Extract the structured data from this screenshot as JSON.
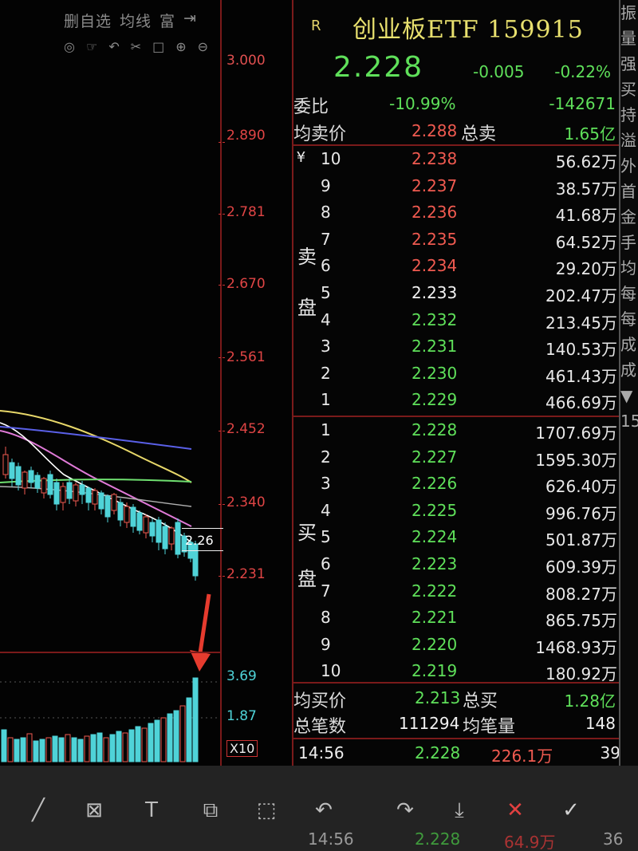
{
  "toolbar_top": {
    "row1": [
      "删自选",
      "均线",
      "富",
      "⇥"
    ],
    "row2_icons": [
      "hide-icon",
      "pointer-icon",
      "undo-icon",
      "scissors-icon",
      "rect-icon",
      "zoom-in-icon",
      "zoom-out-icon"
    ]
  },
  "price_axis": [
    "3.000",
    "2.890",
    "2.781",
    "2.670",
    "2.561",
    "2.452",
    "2.340",
    "2.231"
  ],
  "volume_axis": [
    "3.69",
    "1.87"
  ],
  "volume_unit": "X10",
  "last_price_tag": "2.26",
  "header": {
    "market": "R",
    "name": "创业板ETF 159915",
    "price": "2.228",
    "change": "-0.005",
    "change_pct": "-0.22%"
  },
  "weibi": {
    "label": "委比",
    "value": "-10.99%",
    "diff": "-142671"
  },
  "avg_sell": {
    "label": "均卖价",
    "value": "2.288",
    "total_label": "总卖",
    "total": "1.65亿"
  },
  "sell_side": {
    "label1": "卖",
    "label2": "盘",
    "currency": "¥",
    "levels": [
      {
        "n": "10",
        "price": "2.238",
        "vol": "56.62万",
        "color": "red"
      },
      {
        "n": "9",
        "price": "2.237",
        "vol": "38.57万",
        "color": "red"
      },
      {
        "n": "8",
        "price": "2.236",
        "vol": "41.68万",
        "color": "red"
      },
      {
        "n": "7",
        "price": "2.235",
        "vol": "64.52万",
        "color": "red"
      },
      {
        "n": "6",
        "price": "2.234",
        "vol": "29.20万",
        "color": "red"
      },
      {
        "n": "5",
        "price": "2.233",
        "vol": "202.47万",
        "color": "white"
      },
      {
        "n": "4",
        "price": "2.232",
        "vol": "213.45万",
        "color": "green"
      },
      {
        "n": "3",
        "price": "2.231",
        "vol": "140.53万",
        "color": "green"
      },
      {
        "n": "2",
        "price": "2.230",
        "vol": "461.43万",
        "color": "green"
      },
      {
        "n": "1",
        "price": "2.229",
        "vol": "466.69万",
        "color": "green"
      }
    ]
  },
  "buy_side": {
    "label1": "买",
    "label2": "盘",
    "levels": [
      {
        "n": "1",
        "price": "2.228",
        "vol": "1707.69万",
        "color": "green"
      },
      {
        "n": "2",
        "price": "2.227",
        "vol": "1595.30万",
        "color": "green"
      },
      {
        "n": "3",
        "price": "2.226",
        "vol": "626.40万",
        "color": "green"
      },
      {
        "n": "4",
        "price": "2.225",
        "vol": "996.76万",
        "color": "green"
      },
      {
        "n": "5",
        "price": "2.224",
        "vol": "501.87万",
        "color": "green"
      },
      {
        "n": "6",
        "price": "2.223",
        "vol": "609.39万",
        "color": "green"
      },
      {
        "n": "7",
        "price": "2.222",
        "vol": "808.27万",
        "color": "green"
      },
      {
        "n": "8",
        "price": "2.221",
        "vol": "865.75万",
        "color": "green"
      },
      {
        "n": "9",
        "price": "2.220",
        "vol": "1468.93万",
        "color": "green"
      },
      {
        "n": "10",
        "price": "2.219",
        "vol": "180.92万",
        "color": "green"
      }
    ]
  },
  "avg_buy": {
    "label": "均买价",
    "value": "2.213",
    "total_label": "总买",
    "total": "1.28亿"
  },
  "trades": {
    "label": "总笔数",
    "value": "111294",
    "avg_label": "均笔量",
    "avg": "148"
  },
  "tick": {
    "time": "14:56",
    "price": "2.228",
    "vol": "226.1万",
    "count": "39"
  },
  "ghost_tick": {
    "time": "14:56",
    "price": "2.228",
    "vol": "64.9万",
    "count": "36"
  },
  "edge_panel": [
    "振",
    "量",
    "强",
    "买",
    "持",
    "溢",
    "外",
    "首",
    "金",
    "手",
    "均",
    "每",
    "每",
    "成",
    "成",
    "▼",
    "15"
  ],
  "bottom_tools": [
    "pen-icon",
    "mosaic-icon",
    "text-icon",
    "crop-icon",
    "frame-icon",
    "undo-icon",
    "redo-icon",
    "save-icon",
    "cancel-icon",
    "confirm-icon"
  ],
  "colors": {
    "up": "#f05a50",
    "down": "#5fe05a",
    "title": "#e8e06e",
    "grid": "#7a1a1a"
  }
}
